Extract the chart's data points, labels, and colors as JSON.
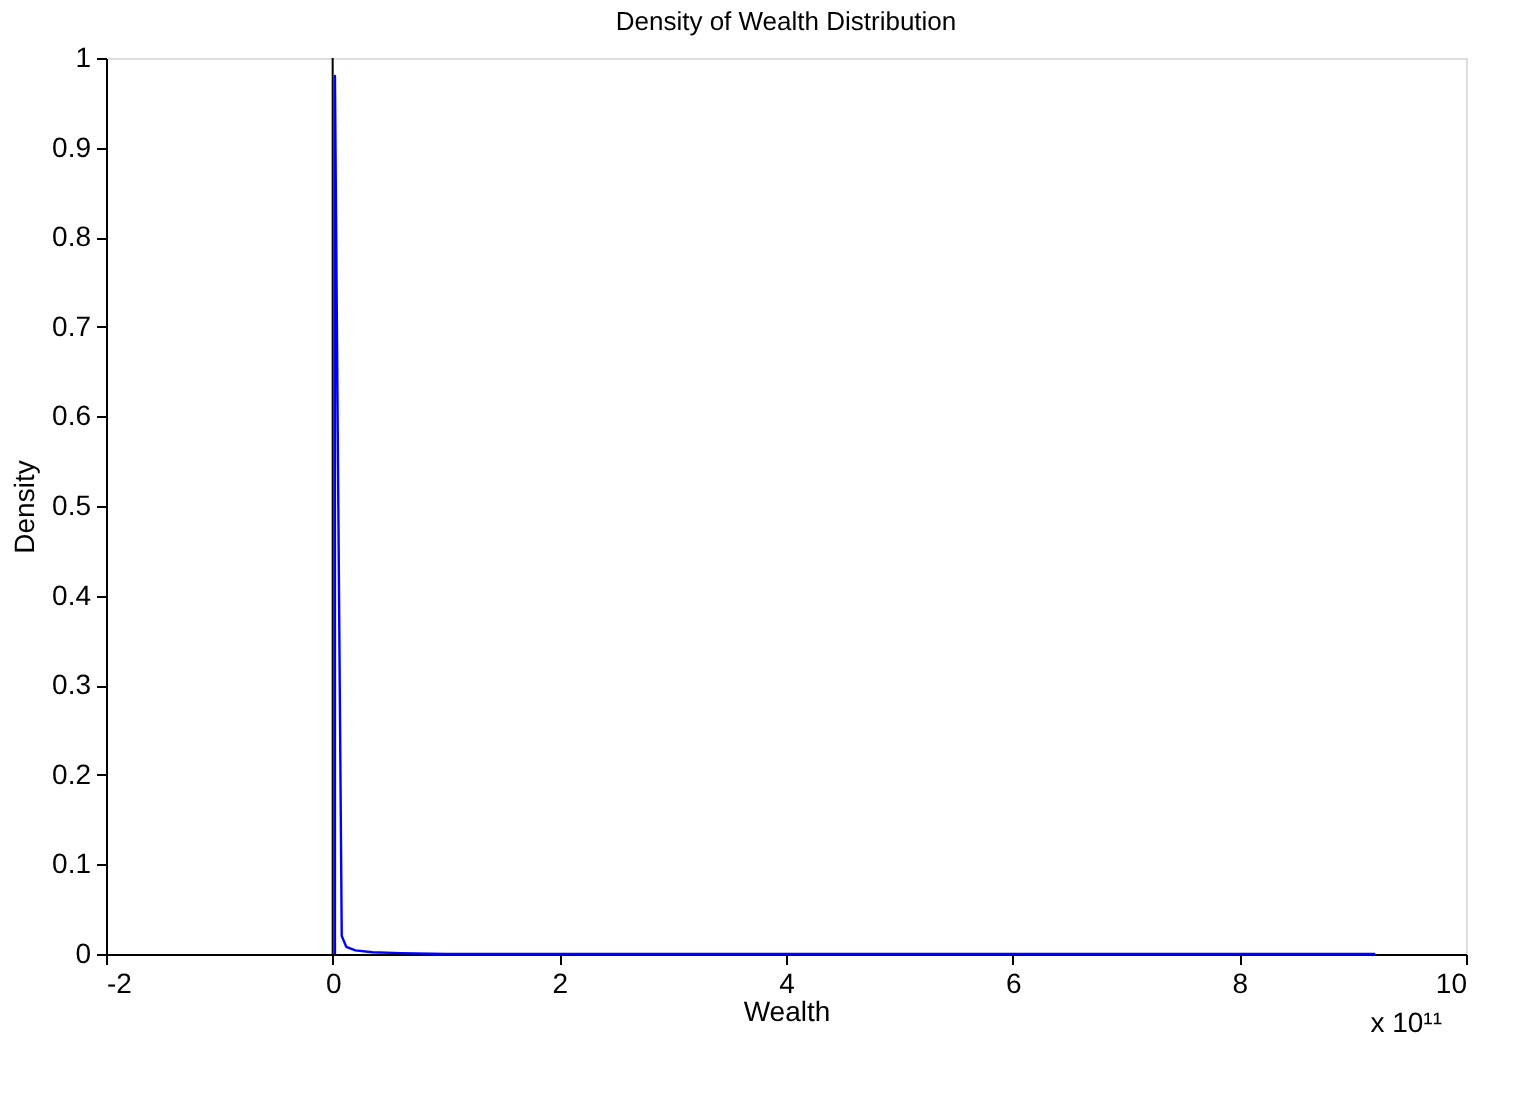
{
  "chart_data": {
    "type": "line",
    "title": "Density of Wealth Distribution",
    "xlabel": "Wealth",
    "ylabel": "Density",
    "annotations": [
      "x 10¹¹"
    ],
    "series": [
      {
        "color": "#0000ff",
        "x": [
          0.02,
          0.02,
          0.08,
          0.12,
          0.2,
          0.35,
          0.6,
          1.0,
          9.2
        ],
        "values": [
          0.0,
          0.98,
          0.02,
          0.008,
          0.004,
          0.002,
          0.001,
          0.0,
          0.0
        ]
      }
    ],
    "ref_lines": [
      {
        "axis": "x",
        "value": 0,
        "color": "#000000"
      }
    ],
    "xlim": [
      -2,
      10
    ],
    "xticks": [
      -2,
      0,
      2,
      4,
      6,
      8,
      10
    ],
    "ylim": [
      0,
      1
    ],
    "yticks": [
      0,
      0.1,
      0.2,
      0.3,
      0.4,
      0.5,
      0.6,
      0.7,
      0.8,
      0.9,
      1
    ],
    "grid": false
  }
}
